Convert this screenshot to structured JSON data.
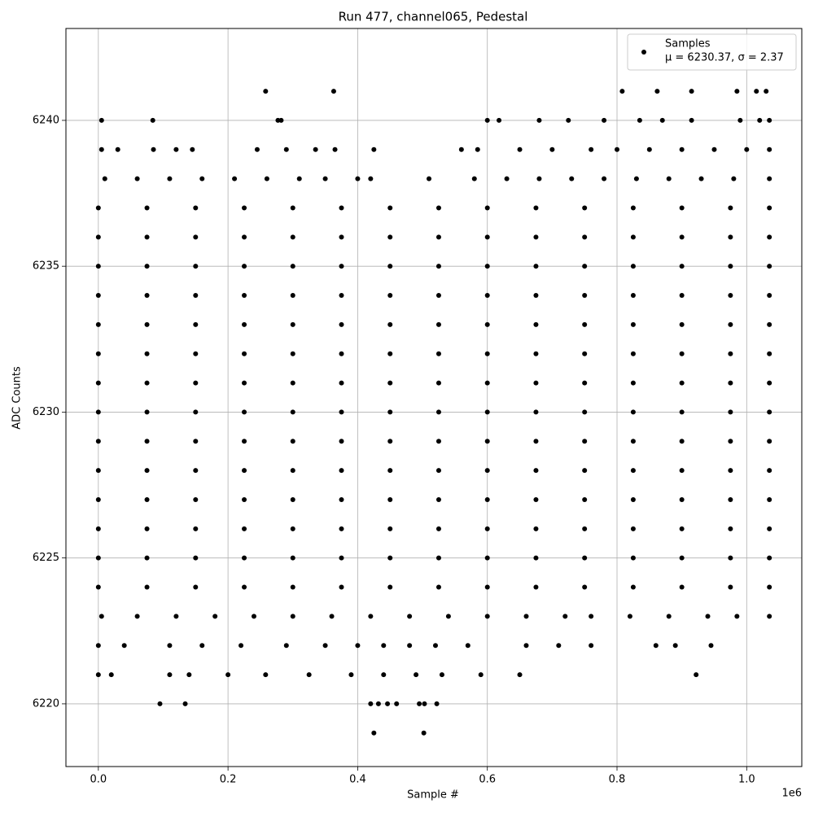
{
  "chart_data": {
    "type": "scatter",
    "title": "Run 477, channel065, Pedestal",
    "x_label": "Sample #",
    "y_label": "ADC Counts",
    "x_offset_label": "1e6",
    "legend_stats": "μ = 6230.37, σ = 2.37",
    "legend": "upper right",
    "grid": true,
    "xlim": [
      -50000,
      1085000
    ],
    "ylim": [
      6217.85,
      6243.15
    ],
    "xticks": [
      {
        "value": 0,
        "label": "0.0"
      },
      {
        "value": 200000,
        "label": "0.2"
      },
      {
        "value": 400000,
        "label": "0.4"
      },
      {
        "value": 600000,
        "label": "0.6"
      },
      {
        "value": 800000,
        "label": "0.8"
      },
      {
        "value": 1000000,
        "label": "1.0"
      }
    ],
    "yticks": [
      6220,
      6225,
      6230,
      6235,
      6240
    ],
    "series": [
      {
        "name": "Samples",
        "color": "#000000",
        "x": [
          258000,
          363000,
          808000,
          862000,
          915000,
          985000,
          1015000,
          1030000,
          5000,
          84000,
          277000,
          282000,
          600000,
          618000,
          680000,
          725000,
          780000,
          835000,
          870000,
          915000,
          990000,
          1020000,
          1035000,
          5000,
          30000,
          85000,
          120000,
          145000,
          245000,
          290000,
          335000,
          365000,
          425000,
          560000,
          585000,
          650000,
          700000,
          760000,
          800000,
          850000,
          900000,
          950000,
          1000000,
          1035000,
          10000,
          60000,
          110000,
          160000,
          210000,
          260000,
          310000,
          350000,
          400000,
          420000,
          510000,
          580000,
          630000,
          680000,
          730000,
          780000,
          830000,
          880000,
          930000,
          980000,
          1035000,
          0,
          75000,
          150000,
          225000,
          300000,
          375000,
          450000,
          525000,
          600000,
          675000,
          750000,
          825000,
          900000,
          975000,
          1035000,
          0,
          75000,
          150000,
          225000,
          300000,
          375000,
          450000,
          525000,
          600000,
          675000,
          750000,
          825000,
          900000,
          975000,
          1035000,
          0,
          75000,
          150000,
          225000,
          300000,
          375000,
          450000,
          525000,
          600000,
          675000,
          750000,
          825000,
          900000,
          975000,
          1035000,
          0,
          75000,
          150000,
          225000,
          300000,
          375000,
          450000,
          525000,
          600000,
          675000,
          750000,
          825000,
          900000,
          975000,
          1035000,
          0,
          75000,
          150000,
          225000,
          300000,
          375000,
          450000,
          525000,
          600000,
          675000,
          750000,
          825000,
          900000,
          975000,
          1035000,
          0,
          75000,
          150000,
          225000,
          300000,
          375000,
          450000,
          525000,
          600000,
          675000,
          750000,
          825000,
          900000,
          975000,
          1035000,
          0,
          75000,
          150000,
          225000,
          300000,
          375000,
          450000,
          525000,
          600000,
          675000,
          750000,
          825000,
          900000,
          975000,
          1035000,
          0,
          75000,
          150000,
          225000,
          300000,
          375000,
          450000,
          525000,
          600000,
          675000,
          750000,
          825000,
          900000,
          975000,
          1035000,
          0,
          75000,
          150000,
          225000,
          300000,
          375000,
          450000,
          525000,
          600000,
          675000,
          750000,
          825000,
          900000,
          975000,
          1035000,
          0,
          75000,
          150000,
          225000,
          300000,
          375000,
          450000,
          525000,
          600000,
          675000,
          750000,
          825000,
          900000,
          975000,
          1035000,
          0,
          75000,
          150000,
          225000,
          300000,
          375000,
          450000,
          525000,
          600000,
          675000,
          750000,
          825000,
          900000,
          975000,
          1035000,
          0,
          75000,
          150000,
          225000,
          300000,
          375000,
          450000,
          525000,
          600000,
          675000,
          750000,
          825000,
          900000,
          975000,
          1035000,
          0,
          75000,
          150000,
          225000,
          300000,
          375000,
          450000,
          525000,
          600000,
          675000,
          750000,
          825000,
          900000,
          975000,
          1035000,
          0,
          75000,
          150000,
          225000,
          300000,
          375000,
          450000,
          525000,
          600000,
          675000,
          750000,
          825000,
          900000,
          975000,
          1035000,
          5000,
          60000,
          120000,
          180000,
          240000,
          300000,
          360000,
          420000,
          480000,
          540000,
          600000,
          660000,
          720000,
          760000,
          820000,
          880000,
          940000,
          985000,
          1035000,
          0,
          40000,
          110000,
          160000,
          220000,
          290000,
          350000,
          400000,
          440000,
          480000,
          520000,
          570000,
          660000,
          710000,
          760000,
          860000,
          890000,
          945000,
          0,
          20000,
          110000,
          140000,
          200000,
          258000,
          325000,
          390000,
          440000,
          490000,
          530000,
          590000,
          650000,
          922000,
          95000,
          134000,
          420000,
          432000,
          446000,
          460000,
          495000,
          503000,
          522000,
          425000,
          502000
        ],
        "values": [
          6241,
          6241,
          6241,
          6241,
          6241,
          6241,
          6241,
          6241,
          6240,
          6240,
          6240,
          6240,
          6240,
          6240,
          6240,
          6240,
          6240,
          6240,
          6240,
          6240,
          6240,
          6240,
          6240,
          6239,
          6239,
          6239,
          6239,
          6239,
          6239,
          6239,
          6239,
          6239,
          6239,
          6239,
          6239,
          6239,
          6239,
          6239,
          6239,
          6239,
          6239,
          6239,
          6239,
          6239,
          6238,
          6238,
          6238,
          6238,
          6238,
          6238,
          6238,
          6238,
          6238,
          6238,
          6238,
          6238,
          6238,
          6238,
          6238,
          6238,
          6238,
          6238,
          6238,
          6238,
          6238,
          6237,
          6237,
          6237,
          6237,
          6237,
          6237,
          6237,
          6237,
          6237,
          6237,
          6237,
          6237,
          6237,
          6237,
          6237,
          6236,
          6236,
          6236,
          6236,
          6236,
          6236,
          6236,
          6236,
          6236,
          6236,
          6236,
          6236,
          6236,
          6236,
          6236,
          6235,
          6235,
          6235,
          6235,
          6235,
          6235,
          6235,
          6235,
          6235,
          6235,
          6235,
          6235,
          6235,
          6235,
          6235,
          6234,
          6234,
          6234,
          6234,
          6234,
          6234,
          6234,
          6234,
          6234,
          6234,
          6234,
          6234,
          6234,
          6234,
          6234,
          6233,
          6233,
          6233,
          6233,
          6233,
          6233,
          6233,
          6233,
          6233,
          6233,
          6233,
          6233,
          6233,
          6233,
          6233,
          6232,
          6232,
          6232,
          6232,
          6232,
          6232,
          6232,
          6232,
          6232,
          6232,
          6232,
          6232,
          6232,
          6232,
          6232,
          6231,
          6231,
          6231,
          6231,
          6231,
          6231,
          6231,
          6231,
          6231,
          6231,
          6231,
          6231,
          6231,
          6231,
          6231,
          6230,
          6230,
          6230,
          6230,
          6230,
          6230,
          6230,
          6230,
          6230,
          6230,
          6230,
          6230,
          6230,
          6230,
          6230,
          6229,
          6229,
          6229,
          6229,
          6229,
          6229,
          6229,
          6229,
          6229,
          6229,
          6229,
          6229,
          6229,
          6229,
          6229,
          6228,
          6228,
          6228,
          6228,
          6228,
          6228,
          6228,
          6228,
          6228,
          6228,
          6228,
          6228,
          6228,
          6228,
          6228,
          6227,
          6227,
          6227,
          6227,
          6227,
          6227,
          6227,
          6227,
          6227,
          6227,
          6227,
          6227,
          6227,
          6227,
          6227,
          6226,
          6226,
          6226,
          6226,
          6226,
          6226,
          6226,
          6226,
          6226,
          6226,
          6226,
          6226,
          6226,
          6226,
          6226,
          6225,
          6225,
          6225,
          6225,
          6225,
          6225,
          6225,
          6225,
          6225,
          6225,
          6225,
          6225,
          6225,
          6225,
          6225,
          6224,
          6224,
          6224,
          6224,
          6224,
          6224,
          6224,
          6224,
          6224,
          6224,
          6224,
          6224,
          6224,
          6224,
          6224,
          6223,
          6223,
          6223,
          6223,
          6223,
          6223,
          6223,
          6223,
          6223,
          6223,
          6223,
          6223,
          6223,
          6223,
          6223,
          6223,
          6223,
          6223,
          6223,
          6222,
          6222,
          6222,
          6222,
          6222,
          6222,
          6222,
          6222,
          6222,
          6222,
          6222,
          6222,
          6222,
          6222,
          6222,
          6222,
          6222,
          6222,
          6221,
          6221,
          6221,
          6221,
          6221,
          6221,
          6221,
          6221,
          6221,
          6221,
          6221,
          6221,
          6221,
          6221,
          6220,
          6220,
          6220,
          6220,
          6220,
          6220,
          6220,
          6220,
          6220,
          6219,
          6219
        ]
      }
    ]
  }
}
